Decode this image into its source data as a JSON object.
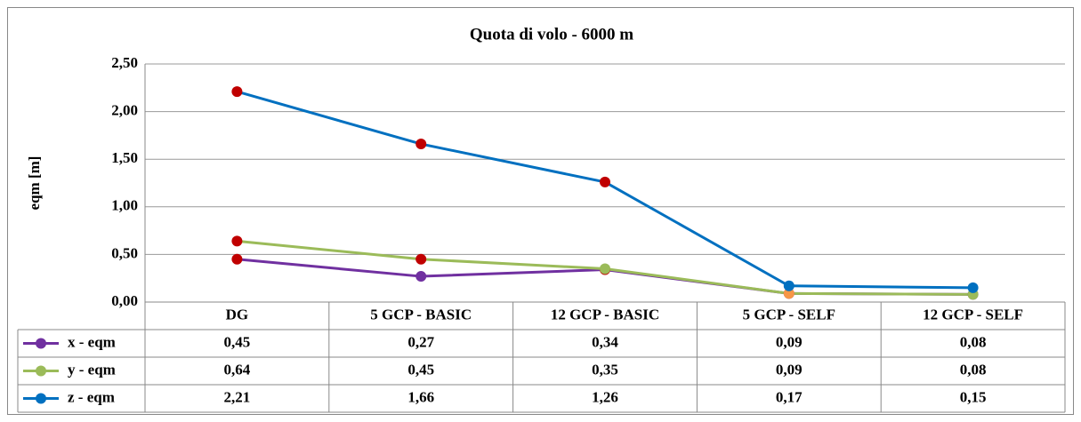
{
  "chart_data": {
    "type": "line",
    "title": "Quota di volo - 6000 m",
    "y_label": "eqm [m]",
    "categories": [
      "DG",
      "5 GCP - BASIC",
      "12 GCP - BASIC",
      "5 GCP - SELF",
      "12 GCP - SELF"
    ],
    "series": [
      {
        "name": "x - eqm",
        "color": "#7030a0",
        "values": [
          0.45,
          0.27,
          0.34,
          0.09,
          0.08
        ],
        "value_labels": [
          "0,45",
          "0,27",
          "0,34",
          "0,09",
          "0,08"
        ],
        "marker_colors": [
          "#c00000",
          "#7030a0",
          "#c00000",
          "#7030a0",
          "#7030a0"
        ]
      },
      {
        "name": "y - eqm",
        "color": "#9bbb59",
        "values": [
          0.64,
          0.45,
          0.35,
          0.09,
          0.08
        ],
        "value_labels": [
          "0,64",
          "0,45",
          "0,35",
          "0,09",
          "0,08"
        ],
        "marker_colors": [
          "#c00000",
          "#c00000",
          "#9bbb59",
          "#f79646",
          "#9bbb59"
        ]
      },
      {
        "name": "z - eqm",
        "color": "#0070c0",
        "values": [
          2.21,
          1.66,
          1.26,
          0.17,
          0.15
        ],
        "value_labels": [
          "2,21",
          "1,66",
          "1,26",
          "0,17",
          "0,15"
        ],
        "marker_colors": [
          "#c00000",
          "#c00000",
          "#c00000",
          "#0070c0",
          "#0070c0"
        ]
      }
    ],
    "ylim": [
      0,
      2.5
    ],
    "yticks": [
      {
        "value": 0,
        "label": "0,00"
      },
      {
        "value": 0.5,
        "label": "0,50"
      },
      {
        "value": 1,
        "label": "1,00"
      },
      {
        "value": 1.5,
        "label": "1,50"
      },
      {
        "value": 2,
        "label": "2,00"
      },
      {
        "value": 2.5,
        "label": "2,50"
      }
    ],
    "grid": true
  }
}
